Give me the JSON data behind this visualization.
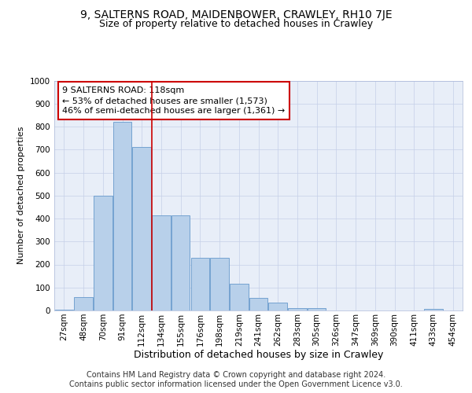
{
  "title1": "9, SALTERNS ROAD, MAIDENBOWER, CRAWLEY, RH10 7JE",
  "title2": "Size of property relative to detached houses in Crawley",
  "xlabel": "Distribution of detached houses by size in Crawley",
  "ylabel": "Number of detached properties",
  "categories": [
    "27sqm",
    "48sqm",
    "70sqm",
    "91sqm",
    "112sqm",
    "134sqm",
    "155sqm",
    "176sqm",
    "198sqm",
    "219sqm",
    "241sqm",
    "262sqm",
    "283sqm",
    "305sqm",
    "326sqm",
    "347sqm",
    "369sqm",
    "390sqm",
    "411sqm",
    "433sqm",
    "454sqm"
  ],
  "values": [
    5,
    57,
    500,
    820,
    710,
    415,
    415,
    230,
    230,
    115,
    55,
    35,
    10,
    10,
    0,
    0,
    0,
    0,
    0,
    7,
    0
  ],
  "bar_color": "#b8d0ea",
  "bar_edge_color": "#6699cc",
  "vline_pos": 4.5,
  "vline_color": "#cc0000",
  "annotation_line1": "9 SALTERNS ROAD: 118sqm",
  "annotation_line2": "← 53% of detached houses are smaller (1,573)",
  "annotation_line3": "46% of semi-detached houses are larger (1,361) →",
  "annotation_box_color": "#ffffff",
  "annotation_box_edge": "#cc0000",
  "footer1": "Contains HM Land Registry data © Crown copyright and database right 2024.",
  "footer2": "Contains public sector information licensed under the Open Government Licence v3.0.",
  "ylim": [
    0,
    1000
  ],
  "plot_bg": "#e8eef8",
  "grid_color": "#c5cfe8",
  "title1_fontsize": 10,
  "title2_fontsize": 9,
  "xlabel_fontsize": 9,
  "ylabel_fontsize": 8,
  "tick_fontsize": 7.5,
  "ann_fontsize": 8,
  "footer_fontsize": 7
}
